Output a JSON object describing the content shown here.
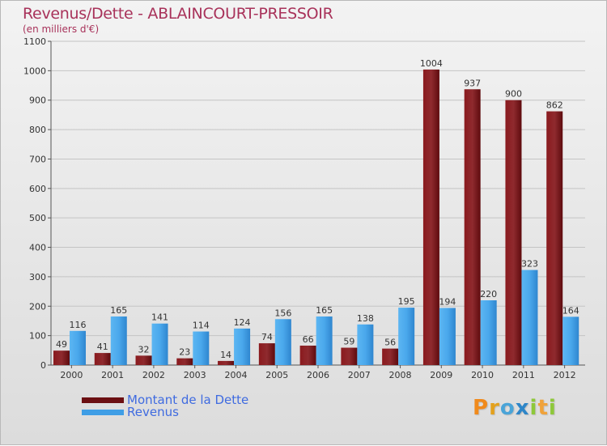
{
  "header": {
    "title": "Revenus/Dette - ABLAINCOURT-PRESSOIR",
    "subtitle": "(en milliers d'€)"
  },
  "legend": {
    "items": [
      {
        "label": "Montant de la Dette",
        "color": "#6b0f12"
      },
      {
        "label": "Revenus",
        "color": "#3f9ee6"
      }
    ]
  },
  "logo": {
    "letters": [
      "P",
      "r",
      "o",
      "x",
      "i",
      "t",
      "i"
    ]
  },
  "chart_data": {
    "type": "bar",
    "title": "Revenus/Dette - ABLAINCOURT-PRESSOIR",
    "ylabel": "(en milliers d'€)",
    "xlabel": "",
    "categories": [
      "2000",
      "2001",
      "2002",
      "2003",
      "2004",
      "2005",
      "2006",
      "2007",
      "2008",
      "2009",
      "2010",
      "2011",
      "2012"
    ],
    "series": [
      {
        "name": "Montant de la Dette",
        "color": "#6b0f12",
        "values": [
          49,
          41,
          32,
          23,
          14,
          74,
          66,
          59,
          56,
          1004,
          937,
          900,
          862
        ]
      },
      {
        "name": "Revenus",
        "color": "#3f9ee6",
        "values": [
          116,
          165,
          141,
          114,
          124,
          156,
          165,
          138,
          195,
          194,
          220,
          323,
          164
        ]
      }
    ],
    "ylim": [
      0,
      1100
    ],
    "yticks": [
      0,
      100,
      200,
      300,
      400,
      500,
      600,
      700,
      800,
      900,
      1000,
      1100
    ],
    "grid": true,
    "legend_position": "bottom-left"
  }
}
